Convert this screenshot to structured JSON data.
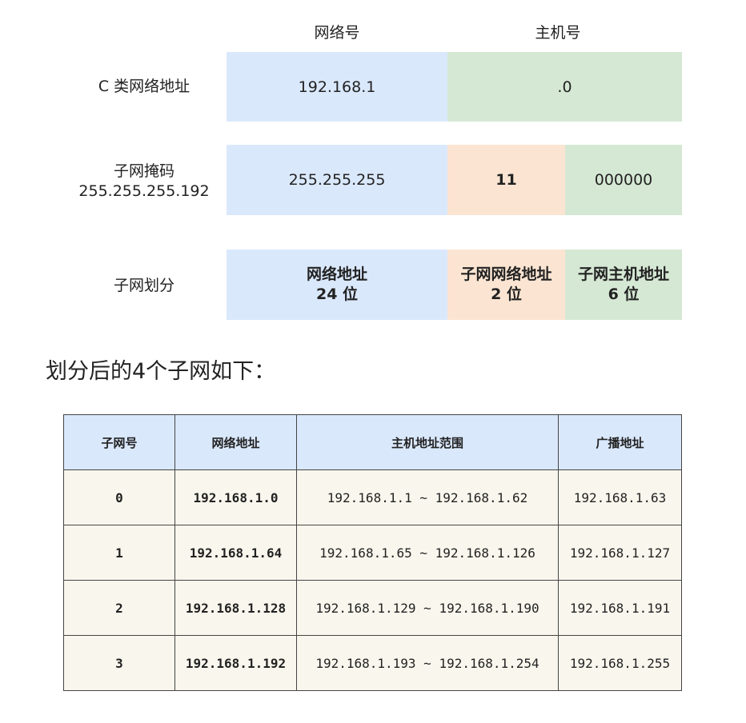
{
  "headers": {
    "network": "网络号",
    "host": "主机号"
  },
  "rows": {
    "class_c": {
      "label": "C 类网络地址",
      "network": "192.168.1",
      "host": ".0"
    },
    "mask": {
      "label_line1": "子网掩码",
      "label_line2": "255.255.255.192",
      "network": "255.255.255",
      "subnet_bits": "11",
      "host_bits": "000000"
    },
    "division": {
      "label": "子网划分",
      "network_line1": "网络地址",
      "network_line2": "24 位",
      "subnet_line1": "子网网络地址",
      "subnet_line2": "2 位",
      "host_line1": "子网主机地址",
      "host_line2": "6 位"
    }
  },
  "caption": "划分后的4个子网如下：",
  "table": {
    "columns": [
      "子网号",
      "网络地址",
      "主机地址范围",
      "广播地址"
    ],
    "rows": [
      [
        "0",
        "192.168.1.0",
        "192.168.1.1 ~ 192.168.1.62",
        "192.168.1.63"
      ],
      [
        "1",
        "192.168.1.64",
        "192.168.1.65 ~ 192.168.1.126",
        "192.168.1.127"
      ],
      [
        "2",
        "192.168.1.128",
        "192.168.1.129 ~ 192.168.1.190",
        "192.168.1.191"
      ],
      [
        "3",
        "192.168.1.192",
        "192.168.1.193 ~ 192.168.1.254",
        "192.168.1.255"
      ]
    ]
  },
  "colors": {
    "network": "#dae8fc",
    "subnet": "#fbe5d2",
    "host": "#d5e8d4",
    "table_body": "#f9f7ed"
  }
}
